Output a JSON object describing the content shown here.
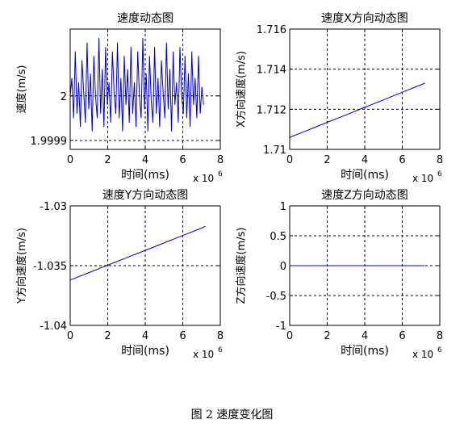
{
  "caption": "图 2  速度变化图",
  "chart_data": [
    {
      "type": "line",
      "title": "速度动态图",
      "xlabel": "时间(ms)",
      "ylabel": "速度(m/s)",
      "x_scale_note": "x 10",
      "x_scale_exp": "6",
      "xlim": [
        0,
        8
      ],
      "ylim": [
        1.99988,
        2.00015
      ],
      "x_ticks": [
        "0",
        "2",
        "4",
        "6",
        "8"
      ],
      "y_ticks": [
        {
          "value": 2.0,
          "label": "2"
        },
        {
          "value": 1.9999,
          "label": "1.9999"
        }
      ],
      "grid": true,
      "series": [
        {
          "x": [
            0.0,
            0.09,
            0.18,
            0.27,
            0.36,
            0.45,
            0.54,
            0.63,
            0.72,
            0.81,
            0.9,
            0.99,
            1.08,
            1.17,
            1.26,
            1.35,
            1.44,
            1.53,
            1.62,
            1.71,
            1.8,
            1.89,
            1.98,
            2.07,
            2.16,
            2.25,
            2.34,
            2.43,
            2.52,
            2.61,
            2.7,
            2.79,
            2.88,
            2.97,
            3.06,
            3.15,
            3.24,
            3.33,
            3.42,
            3.51,
            3.6,
            3.69,
            3.78,
            3.87,
            3.96,
            4.05,
            4.14,
            4.23,
            4.32,
            4.41,
            4.5,
            4.59,
            4.68,
            4.77,
            4.86,
            4.95,
            5.04,
            5.13,
            5.22,
            5.31,
            5.4,
            5.49,
            5.58,
            5.67,
            5.76,
            5.85,
            5.94,
            6.03,
            6.12,
            6.21,
            6.3,
            6.39,
            6.48,
            6.57,
            6.66,
            6.75,
            6.84,
            6.93,
            7.02,
            7.11
          ],
          "y": [
            2.0,
            2.00004,
            1.99995,
            2.0001,
            1.99996,
            2.00003,
            1.99993,
            2.00008,
            2.00001,
            1.99994,
            2.00012,
            1.99997,
            2.00005,
            1.99992,
            2.00009,
            2.0,
            1.99995,
            2.00013,
            1.99996,
            2.00006,
            1.99993,
            2.00011,
            1.99998,
            2.00003,
            1.99994,
            2.0001,
            2.00001,
            1.99996,
            2.00012,
            1.99995,
            2.00004,
            1.99992,
            2.00009,
            1.99998,
            2.00006,
            1.99994,
            2.00011,
            1.99996,
            2.00003,
            1.99993,
            2.0001,
            2.0,
            1.99995,
            2.00013,
            1.99997,
            2.00005,
            1.99992,
            2.00009,
            1.99999,
            1.99994,
            2.00011,
            1.99996,
            2.00004,
            1.99993,
            2.00008,
            2.00001,
            1.99995,
            2.00012,
            1.99997,
            2.00006,
            1.99992,
            2.0001,
            1.99998,
            2.00003,
            1.99994,
            2.00011,
            2.0,
            1.99996,
            2.00009,
            1.99995,
            2.00005,
            1.99993,
            2.0001,
            1.99998,
            2.00004,
            1.99995,
            2.00009,
            1.99996,
            2.00002,
            1.99998
          ]
        }
      ]
    },
    {
      "type": "line",
      "title": "速度X方向动态图",
      "xlabel": "时间(ms)",
      "ylabel": "X方向速度(m/s)",
      "x_scale_note": "x 10",
      "x_scale_exp": "6",
      "xlim": [
        0,
        8
      ],
      "ylim": [
        1.71,
        1.716
      ],
      "x_ticks": [
        "0",
        "2",
        "4",
        "6",
        "8"
      ],
      "y_ticks": [
        {
          "value": 1.71,
          "label": "1.71"
        },
        {
          "value": 1.712,
          "label": "1.712"
        },
        {
          "value": 1.714,
          "label": "1.714"
        },
        {
          "value": 1.716,
          "label": "1.716"
        }
      ],
      "grid": true,
      "series": [
        {
          "x": [
            0,
            1,
            2,
            3,
            4,
            5,
            6,
            7,
            7.2
          ],
          "y": [
            1.7106,
            1.71097,
            1.71135,
            1.71172,
            1.7121,
            1.71247,
            1.71285,
            1.71322,
            1.7133
          ]
        }
      ]
    },
    {
      "type": "line",
      "title": "速度Y方向动态图",
      "xlabel": "时间(ms)",
      "ylabel": "Y方向速度(m/s)",
      "x_scale_note": "x 10",
      "x_scale_exp": "6",
      "xlim": [
        0,
        8
      ],
      "ylim": [
        -1.04,
        -1.03
      ],
      "x_ticks": [
        "0",
        "2",
        "4",
        "6",
        "8"
      ],
      "y_ticks": [
        {
          "value": -1.03,
          "label": "-1.03"
        },
        {
          "value": -1.035,
          "label": "-1.035"
        },
        {
          "value": -1.04,
          "label": "-1.04"
        }
      ],
      "grid": true,
      "series": [
        {
          "x": [
            0,
            1,
            2,
            3,
            4,
            5,
            6,
            7,
            7.2
          ],
          "y": [
            -1.0362,
            -1.03558,
            -1.03496,
            -1.03434,
            -1.03372,
            -1.0331,
            -1.03248,
            -1.03186,
            -1.0317
          ]
        }
      ]
    },
    {
      "type": "line",
      "title": "速度Z方向动态图",
      "xlabel": "时间(ms)",
      "ylabel": "Z方向速度(m/s)",
      "x_scale_note": "x 10",
      "x_scale_exp": "6",
      "xlim": [
        0,
        8
      ],
      "ylim": [
        -1,
        1
      ],
      "x_ticks": [
        "0",
        "2",
        "4",
        "6",
        "8"
      ],
      "y_ticks": [
        {
          "value": 1,
          "label": "1"
        },
        {
          "value": 0.5,
          "label": "0.5"
        },
        {
          "value": 0,
          "label": "0"
        },
        {
          "value": -0.5,
          "label": "-0.5"
        },
        {
          "value": -1,
          "label": "-1"
        }
      ],
      "grid": true,
      "series": [
        {
          "x": [
            0,
            7.2
          ],
          "y": [
            0,
            0
          ]
        }
      ]
    }
  ],
  "colors": {
    "line": "#0000cc",
    "axes": "#000000",
    "grid": "#000000"
  }
}
